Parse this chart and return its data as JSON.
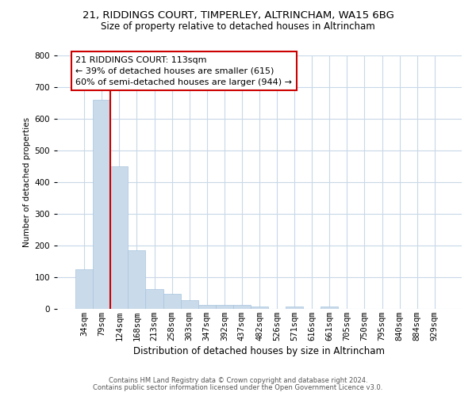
{
  "title1": "21, RIDDINGS COURT, TIMPERLEY, ALTRINCHAM, WA15 6BG",
  "title2": "Size of property relative to detached houses in Altrincham",
  "xlabel": "Distribution of detached houses by size in Altrincham",
  "ylabel": "Number of detached properties",
  "categories": [
    "34sqm",
    "79sqm",
    "124sqm",
    "168sqm",
    "213sqm",
    "258sqm",
    "303sqm",
    "347sqm",
    "392sqm",
    "437sqm",
    "482sqm",
    "526sqm",
    "571sqm",
    "616sqm",
    "661sqm",
    "705sqm",
    "750sqm",
    "795sqm",
    "840sqm",
    "884sqm",
    "929sqm"
  ],
  "values": [
    125,
    660,
    450,
    185,
    63,
    47,
    28,
    12,
    13,
    13,
    7,
    0,
    7,
    0,
    8,
    0,
    0,
    0,
    0,
    0,
    0
  ],
  "bar_color": "#c9daea",
  "bar_edgecolor": "#a8c4df",
  "vline_color": "#cc0000",
  "annotation_lines": [
    "21 RIDDINGS COURT: 113sqm",
    "← 39% of detached houses are smaller (615)",
    "60% of semi-detached houses are larger (944) →"
  ],
  "annotation_box_edgecolor": "#cc0000",
  "annotation_box_facecolor": "#ffffff",
  "ylim": [
    0,
    800
  ],
  "yticks": [
    0,
    100,
    200,
    300,
    400,
    500,
    600,
    700,
    800
  ],
  "footer1": "Contains HM Land Registry data © Crown copyright and database right 2024.",
  "footer2": "Contains public sector information licensed under the Open Government Licence v3.0.",
  "background_color": "#ffffff",
  "grid_color": "#c8d8e8",
  "title1_fontsize": 9.5,
  "title2_fontsize": 8.5,
  "ylabel_fontsize": 7.5,
  "xlabel_fontsize": 8.5,
  "tick_fontsize": 7.5,
  "annot_fontsize": 8.0,
  "footer_fontsize": 6.0
}
